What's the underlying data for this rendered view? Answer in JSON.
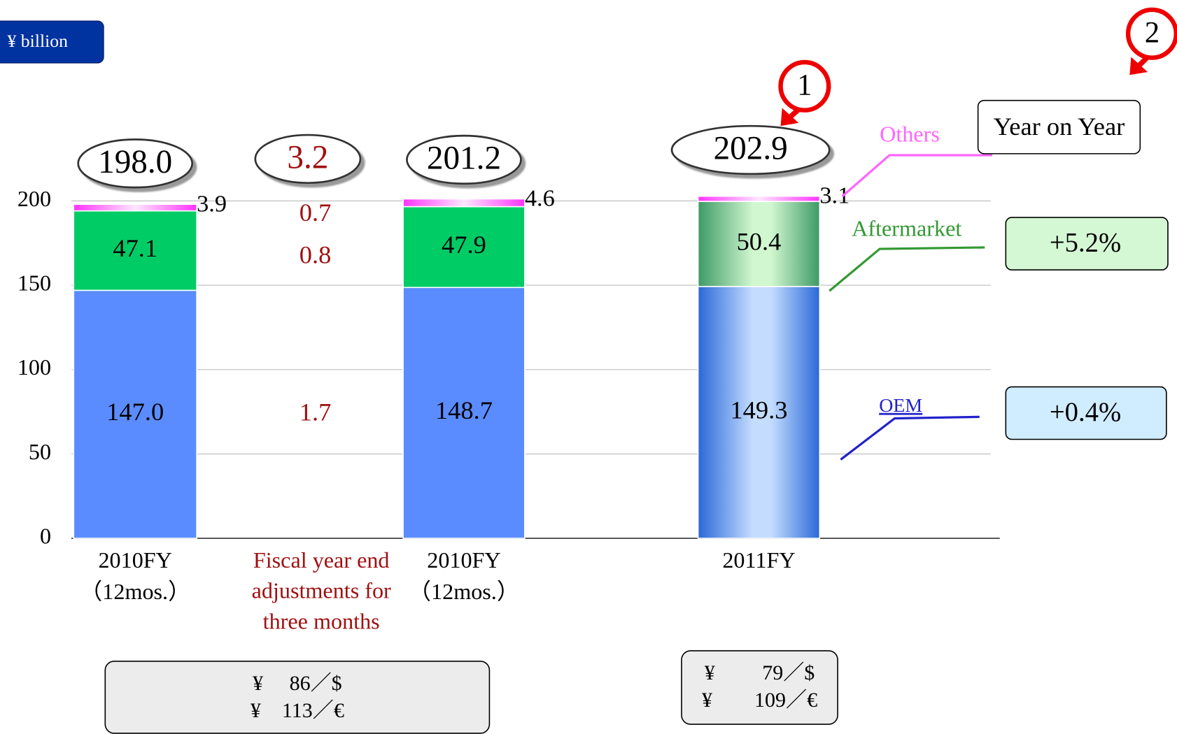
{
  "chart_data": {
    "type": "stacked-bar",
    "unit": "¥ billion",
    "categories": [
      [
        "2010FY",
        "（12mos.）"
      ],
      [
        "2010FY",
        "（12mos.）"
      ],
      [
        "2011FY"
      ]
    ],
    "ylim": [
      0,
      200
    ],
    "yticks": [
      0,
      50,
      100,
      150,
      200
    ],
    "grid": true,
    "highlight_index": 2,
    "series": [
      {
        "name": "OEM",
        "color": "#5b8cff",
        "legend_color": "#2222cc",
        "values": [
          147.0,
          148.7,
          149.3
        ],
        "value_labels": [
          "147.0",
          "148.7",
          "149.3"
        ]
      },
      {
        "name": "Aftermarket",
        "color": "#00cc66",
        "legend_color": "#339933",
        "values": [
          47.1,
          47.9,
          50.4
        ],
        "value_labels": [
          "47.1",
          "47.9",
          "50.4"
        ]
      },
      {
        "name": "Others",
        "color": "#ff44ff",
        "legend_color": "#ff66ff",
        "values": [
          3.9,
          4.6,
          3.1
        ],
        "value_labels": [
          "3.9",
          "4.6",
          "3.1"
        ]
      }
    ],
    "totals": [
      198.0,
      201.2,
      202.9
    ],
    "total_labels": [
      "198.0",
      "201.2",
      "202.9"
    ],
    "adjustment": {
      "label": [
        "Fiscal year end",
        "adjustments for",
        "three months"
      ],
      "total": 3.2,
      "total_label": "3.2",
      "values": [
        1.7,
        0.8,
        0.7
      ]
    },
    "yoy": {
      "title": "Year on Year",
      "aftermarket": "+5.2%",
      "oem": "+0.4%"
    },
    "markers": [
      "1",
      "2"
    ],
    "exchange_rates": [
      [
        "¥　 86／$",
        "¥　113／€"
      ],
      [
        "¥　　 79／$",
        "¥　　109／€"
      ]
    ]
  }
}
